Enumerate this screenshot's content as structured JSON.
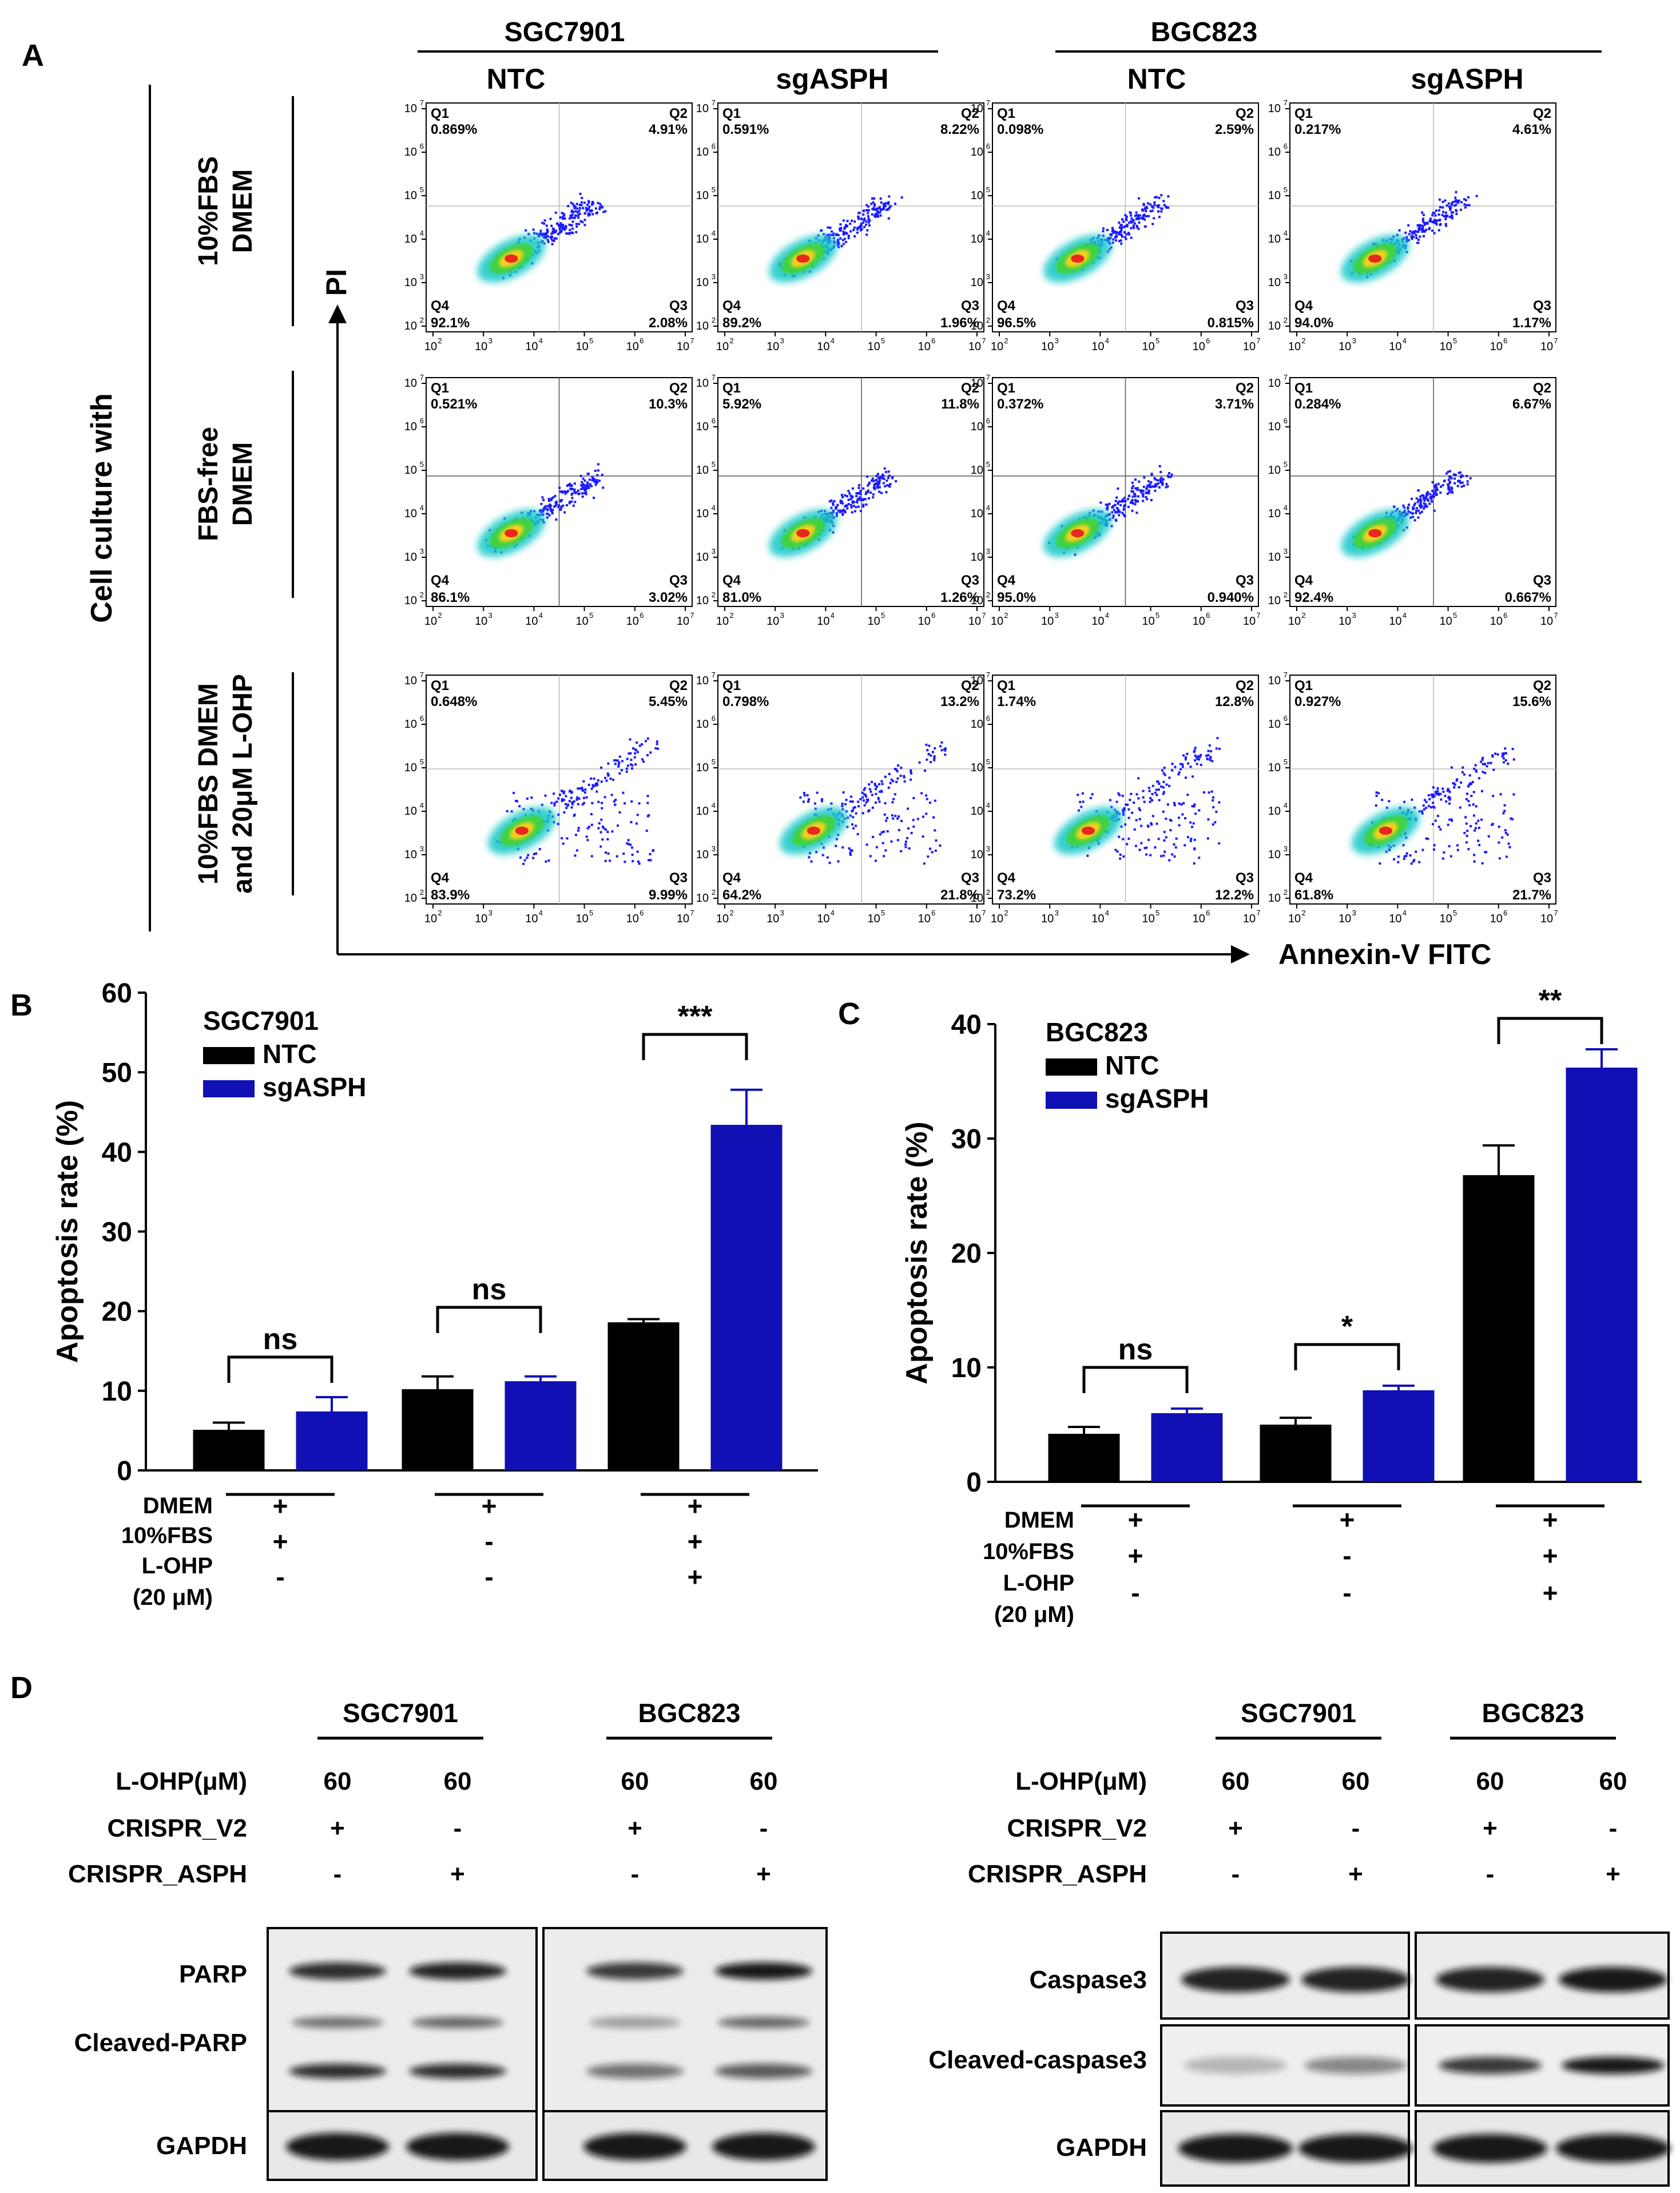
{
  "panel_a": {
    "label": "A",
    "cell_lines": [
      "SGC7901",
      "BGC823"
    ],
    "groups": [
      "NTC",
      "sgASPH"
    ],
    "row_header": "Cell culture with",
    "conditions": [
      {
        "line1": "10%FBS",
        "line2": "DMEM"
      },
      {
        "line1": "FBS-free",
        "line2": "DMEM"
      },
      {
        "line1": "10%FBS DMEM",
        "line2": "and 20μM L-OHP"
      }
    ],
    "y_axis_label": "PI",
    "x_axis_label": "Annexin-V FITC",
    "quadrant_names": [
      "Q1",
      "Q2",
      "Q3",
      "Q4"
    ],
    "tick_labels": [
      "10",
      "10",
      "10",
      "10",
      "10",
      "10"
    ],
    "tick_exponents": [
      "2",
      "3",
      "4",
      "5",
      "6",
      "7"
    ],
    "plots": [
      [
        {
          "q1": "0.869%",
          "q2": "4.91%",
          "q3": "2.08%",
          "q4": "92.1%"
        },
        {
          "q1": "0.591%",
          "q2": "8.22%",
          "q3": "1.96%",
          "q4": "89.2%"
        },
        {
          "q1": "0.098%",
          "q2": "2.59%",
          "q3": "0.815%",
          "q4": "96.5%"
        },
        {
          "q1": "0.217%",
          "q2": "4.61%",
          "q3": "1.17%",
          "q4": "94.0%"
        }
      ],
      [
        {
          "q1": "0.521%",
          "q2": "10.3%",
          "q3": "3.02%",
          "q4": "86.1%"
        },
        {
          "q1": "5.92%",
          "q2": "11.8%",
          "q3": "1.26%",
          "q4": "81.0%"
        },
        {
          "q1": "0.372%",
          "q2": "3.71%",
          "q3": "0.940%",
          "q4": "95.0%"
        },
        {
          "q1": "0.284%",
          "q2": "6.67%",
          "q3": "0.667%",
          "q4": "92.4%"
        }
      ],
      [
        {
          "q1": "0.648%",
          "q2": "5.45%",
          "q3": "9.99%",
          "q4": "83.9%"
        },
        {
          "q1": "0.798%",
          "q2": "13.2%",
          "q3": "21.8%",
          "q4": "64.2%"
        },
        {
          "q1": "1.74%",
          "q2": "12.8%",
          "q3": "12.2%",
          "q4": "73.2%"
        },
        {
          "q1": "0.927%",
          "q2": "15.6%",
          "q3": "21.7%",
          "q4": "61.8%"
        }
      ]
    ]
  },
  "colors": {
    "ntc": "#000000",
    "sgasph": "#1010b4"
  },
  "treatment_labels": [
    "DMEM",
    "10%FBS",
    "L-OHP",
    "(20 μM)"
  ],
  "treatment_signs": [
    [
      "+",
      "+",
      "-"
    ],
    [
      "+",
      "-",
      "-"
    ],
    [
      "+",
      "+",
      "+"
    ]
  ],
  "chart_data": [
    {
      "panel": "B",
      "type": "bar",
      "title": "SGC7901",
      "ylabel": "Apoptosis rate (%)",
      "xlabel": "",
      "ylim": [
        0,
        60
      ],
      "yticks": [
        0,
        10,
        20,
        30,
        40,
        50,
        60
      ],
      "legend_position": "top-left",
      "series": [
        {
          "name": "NTC",
          "values": [
            5.1,
            10.2,
            18.6
          ],
          "errors": [
            0.9,
            1.6,
            0.4
          ]
        },
        {
          "name": "sgASPH",
          "values": [
            7.4,
            11.2,
            43.4
          ],
          "errors": [
            1.8,
            0.6,
            4.4
          ]
        }
      ],
      "significance": [
        "ns",
        "ns",
        "***"
      ]
    },
    {
      "panel": "C",
      "type": "bar",
      "title": "BGC823",
      "ylabel": "Apoptosis rate (%)",
      "xlabel": "",
      "ylim": [
        0,
        40
      ],
      "yticks": [
        0,
        10,
        20,
        30,
        40
      ],
      "legend_position": "top-left",
      "series": [
        {
          "name": "NTC",
          "values": [
            4.2,
            5.0,
            26.8
          ],
          "errors": [
            0.6,
            0.6,
            2.6
          ]
        },
        {
          "name": "sgASPH",
          "values": [
            6.0,
            8.0,
            36.2
          ],
          "errors": [
            0.4,
            0.4,
            1.6
          ]
        }
      ],
      "significance": [
        "ns",
        "*",
        "**"
      ]
    }
  ],
  "panel_d": {
    "label": "D",
    "header_cell_lines": [
      "SGC7901",
      "BGC823"
    ],
    "condition_labels": [
      "L-OHP(μM)",
      "CRISPR_V2",
      "CRISPR_ASPH"
    ],
    "lane_values": {
      "lohp": [
        "60",
        "60",
        "60",
        "60"
      ],
      "v2": [
        "+",
        "-",
        "+",
        "-"
      ],
      "asph": [
        "-",
        "+",
        "-",
        "+"
      ]
    },
    "left_blots": [
      "PARP",
      "Cleaved-PARP",
      "GAPDH"
    ],
    "right_blots": [
      "Caspase3",
      "Cleaved-caspase3",
      "GAPDH"
    ]
  }
}
